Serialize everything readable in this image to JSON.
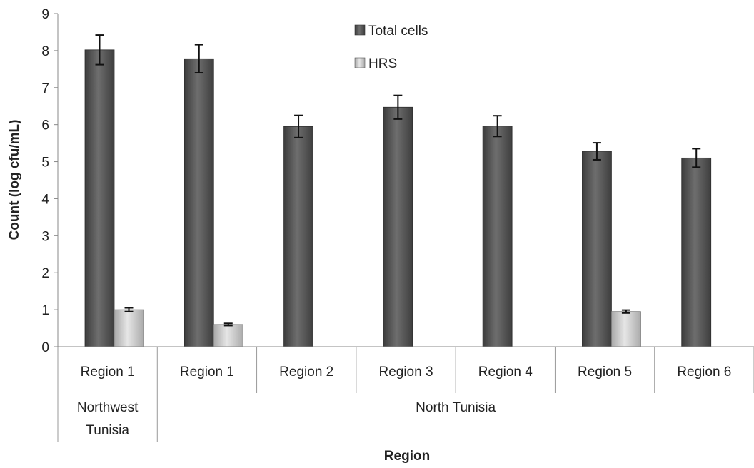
{
  "chart_data": {
    "type": "bar",
    "xlabel": "Region",
    "ylabel": "Count (log cfu/mL)",
    "ylim": [
      0,
      9
    ],
    "yticks": [
      "0",
      "1",
      "2",
      "3",
      "4",
      "5",
      "6",
      "7",
      "8",
      "9"
    ],
    "categories": [
      "Region 1",
      "Region 1",
      "Region 2",
      "Region 3",
      "Region 4",
      "Region 5",
      "Region 6"
    ],
    "groups": [
      {
        "label": "Northwest Tunisia",
        "span": [
          0,
          0
        ]
      },
      {
        "label": "North Tunisia",
        "span": [
          1,
          6
        ]
      }
    ],
    "series": [
      {
        "name": "Total cells",
        "color": "#5a5a5a",
        "values": [
          8.02,
          7.78,
          5.95,
          6.47,
          5.96,
          5.28,
          5.1
        ],
        "errors": [
          0.4,
          0.38,
          0.3,
          0.32,
          0.28,
          0.23,
          0.25
        ]
      },
      {
        "name": "HRS",
        "color": "#c4c4c4",
        "values": [
          1.0,
          0.6,
          null,
          null,
          null,
          0.95,
          null
        ],
        "errors": [
          0.05,
          0.03,
          null,
          null,
          null,
          0.04,
          null
        ]
      }
    ],
    "legend_position": "top-center",
    "grid": false
  }
}
